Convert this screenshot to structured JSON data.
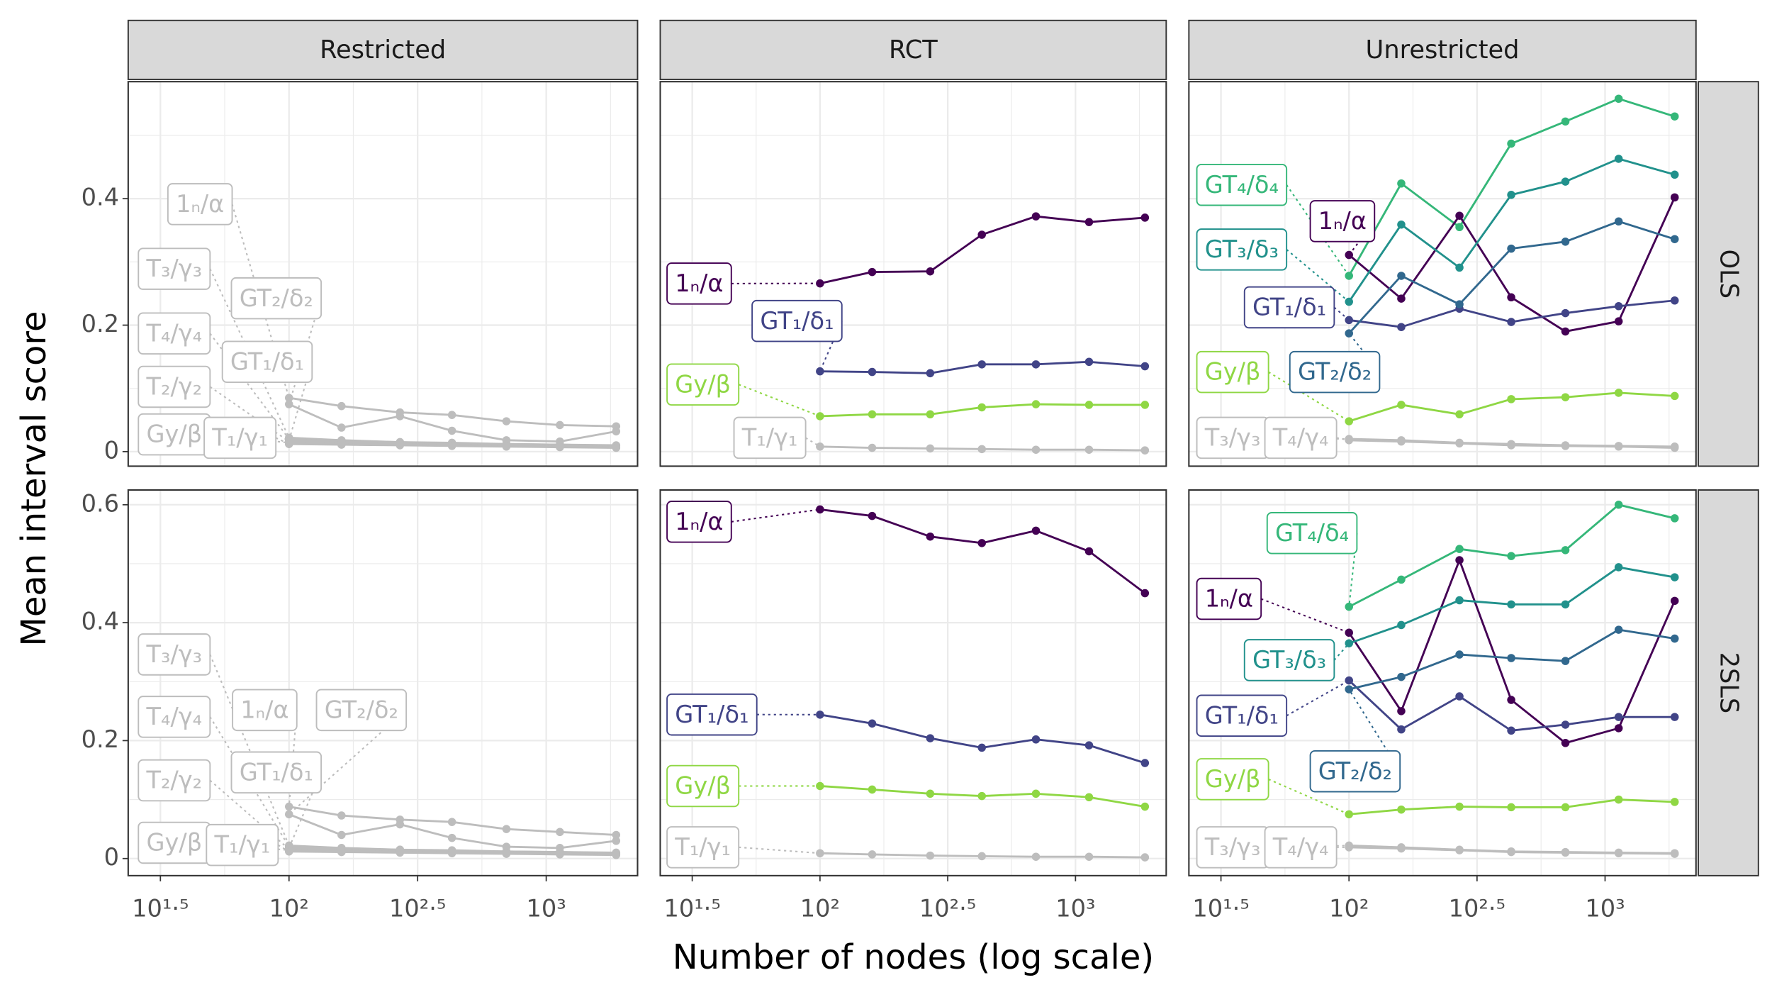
{
  "facets": {
    "columns": [
      "Restricted",
      "RCT",
      "Unrestricted"
    ],
    "rows": [
      "OLS",
      "2SLS"
    ]
  },
  "x_label": "Number of nodes (log scale)",
  "y_label": "Mean interval score",
  "chart_data": [
    {
      "type": "line",
      "xlog": true,
      "grid": true,
      "x": [
        100,
        160,
        270,
        430,
        700,
        1130,
        1870
      ],
      "ylim": [
        -0.023,
        0.585
      ],
      "yticks": [
        0,
        0.2,
        0.4
      ],
      "series": [
        {
          "name": "1ₙ/α",
          "color": "#bdbdbd",
          "values": [
            0.085,
            0.072,
            0.062,
            0.058,
            0.048,
            0.042,
            0.04
          ]
        },
        {
          "name": "T₃/γ₃",
          "color": "#bdbdbd",
          "values": [
            0.022,
            0.018,
            0.015,
            0.014,
            0.012,
            0.011,
            0.01
          ]
        },
        {
          "name": "GT₂/δ₂",
          "color": "#bdbdbd",
          "values": [
            0.075,
            0.038,
            0.056,
            0.033,
            0.018,
            0.016,
            0.032
          ]
        },
        {
          "name": "T₄/γ₄",
          "color": "#bdbdbd",
          "values": [
            0.02,
            0.016,
            0.014,
            0.013,
            0.011,
            0.01,
            0.009
          ]
        },
        {
          "name": "GT₁/δ₁",
          "color": "#bdbdbd",
          "values": [
            0.018,
            0.017,
            0.015,
            0.013,
            0.012,
            0.011,
            0.009
          ]
        },
        {
          "name": "T₂/γ₂",
          "color": "#bdbdbd",
          "values": [
            0.016,
            0.014,
            0.012,
            0.011,
            0.009,
            0.008,
            0.007
          ]
        },
        {
          "name": "Gy/β",
          "color": "#bdbdbd",
          "values": [
            0.014,
            0.013,
            0.011,
            0.01,
            0.009,
            0.008,
            0.007
          ]
        },
        {
          "name": "T₁/γ₁",
          "color": "#bdbdbd",
          "values": [
            0.012,
            0.011,
            0.01,
            0.009,
            0.008,
            0.007,
            0.006
          ]
        }
      ]
    },
    {
      "type": "line",
      "xlog": true,
      "grid": true,
      "x": [
        100,
        160,
        270,
        430,
        700,
        1130,
        1870
      ],
      "series": [
        {
          "name": "1ₙ/α",
          "color": "#440154",
          "values": [
            0.266,
            0.284,
            0.285,
            0.343,
            0.372,
            0.363,
            0.37
          ]
        },
        {
          "name": "GT₁/δ₁",
          "color": "#414487",
          "values": [
            0.127,
            0.126,
            0.124,
            0.138,
            0.138,
            0.142,
            0.135
          ]
        },
        {
          "name": "Gy/β",
          "color": "#8fd744",
          "values": [
            0.056,
            0.059,
            0.059,
            0.07,
            0.075,
            0.074,
            0.074
          ]
        },
        {
          "name": "T₁/γ₁",
          "color": "#bdbdbd",
          "values": [
            0.008,
            0.006,
            0.005,
            0.004,
            0.003,
            0.003,
            0.002
          ]
        }
      ]
    },
    {
      "type": "line",
      "xlog": true,
      "grid": true,
      "x": [
        100,
        160,
        270,
        430,
        700,
        1130,
        1870
      ],
      "series": [
        {
          "name": "GT₄/δ₄",
          "color": "#35b779",
          "values": [
            0.278,
            0.424,
            0.355,
            0.487,
            0.522,
            0.558,
            0.53
          ]
        },
        {
          "name": "1ₙ/α",
          "color": "#440154",
          "values": [
            0.311,
            0.242,
            0.373,
            0.244,
            0.19,
            0.206,
            0.402
          ]
        },
        {
          "name": "GT₃/δ₃",
          "color": "#21918c",
          "values": [
            0.237,
            0.359,
            0.291,
            0.406,
            0.427,
            0.463,
            0.438
          ]
        },
        {
          "name": "GT₁/δ₁",
          "color": "#414487",
          "values": [
            0.208,
            0.197,
            0.226,
            0.205,
            0.219,
            0.23,
            0.239
          ]
        },
        {
          "name": "Gy/β",
          "color": "#8fd744",
          "values": [
            0.048,
            0.074,
            0.059,
            0.083,
            0.086,
            0.093,
            0.088
          ]
        },
        {
          "name": "GT₂/δ₂",
          "color": "#31688e",
          "values": [
            0.187,
            0.278,
            0.233,
            0.321,
            0.332,
            0.364,
            0.336
          ]
        },
        {
          "name": "T₃/γ₃",
          "color": "#bdbdbd",
          "values": [
            0.02,
            0.018,
            0.014,
            0.012,
            0.01,
            0.009,
            0.008
          ]
        },
        {
          "name": "T₄/γ₄",
          "color": "#bdbdbd",
          "values": [
            0.018,
            0.016,
            0.013,
            0.01,
            0.009,
            0.008,
            0.006
          ]
        }
      ]
    },
    {
      "type": "line",
      "xlog": true,
      "grid": true,
      "x": [
        100,
        160,
        270,
        430,
        700,
        1130,
        1870
      ],
      "xlim": [
        23.7,
        2265
      ],
      "xticks": [
        {
          "value": 31.62,
          "label": "10¹·⁵"
        },
        {
          "value": 100,
          "label": "10²"
        },
        {
          "value": 316.2,
          "label": "10²·⁵"
        },
        {
          "value": 1000,
          "label": "10³"
        }
      ],
      "ylim": [
        -0.029,
        0.625
      ],
      "yticks": [
        0,
        0.2,
        0.4,
        0.6
      ],
      "series": [
        {
          "name": "T₃/γ₃",
          "color": "#bdbdbd",
          "values": [
            0.022,
            0.018,
            0.015,
            0.014,
            0.012,
            0.011,
            0.01
          ]
        },
        {
          "name": "T₄/γ₄",
          "color": "#bdbdbd",
          "values": [
            0.02,
            0.016,
            0.014,
            0.013,
            0.011,
            0.01,
            0.009
          ]
        },
        {
          "name": "1ₙ/α",
          "color": "#bdbdbd",
          "values": [
            0.088,
            0.073,
            0.066,
            0.062,
            0.05,
            0.045,
            0.04
          ]
        },
        {
          "name": "GT₂/δ₂",
          "color": "#bdbdbd",
          "values": [
            0.075,
            0.04,
            0.058,
            0.035,
            0.02,
            0.018,
            0.03
          ]
        },
        {
          "name": "T₂/γ₂",
          "color": "#bdbdbd",
          "values": [
            0.016,
            0.014,
            0.012,
            0.011,
            0.009,
            0.008,
            0.007
          ]
        },
        {
          "name": "GT₁/δ₁",
          "color": "#bdbdbd",
          "values": [
            0.018,
            0.017,
            0.015,
            0.013,
            0.012,
            0.011,
            0.009
          ]
        },
        {
          "name": "Gy/β",
          "color": "#bdbdbd",
          "values": [
            0.014,
            0.013,
            0.011,
            0.01,
            0.009,
            0.008,
            0.007
          ]
        },
        {
          "name": "T₁/γ₁",
          "color": "#bdbdbd",
          "values": [
            0.012,
            0.011,
            0.01,
            0.009,
            0.008,
            0.007,
            0.006
          ]
        }
      ]
    },
    {
      "type": "line",
      "xlog": true,
      "grid": true,
      "x": [
        100,
        160,
        270,
        430,
        700,
        1130,
        1870
      ],
      "xlim": [
        23.7,
        2265
      ],
      "xticks": [
        {
          "value": 31.62,
          "label": "10¹·⁵"
        },
        {
          "value": 100,
          "label": "10²"
        },
        {
          "value": 316.2,
          "label": "10²·⁵"
        },
        {
          "value": 1000,
          "label": "10³"
        }
      ],
      "series": [
        {
          "name": "1ₙ/α",
          "color": "#440154",
          "values": [
            0.592,
            0.581,
            0.546,
            0.535,
            0.556,
            0.521,
            0.45
          ]
        },
        {
          "name": "GT₁/δ₁",
          "color": "#414487",
          "values": [
            0.244,
            0.229,
            0.204,
            0.188,
            0.202,
            0.192,
            0.162
          ]
        },
        {
          "name": "Gy/β",
          "color": "#8fd744",
          "values": [
            0.123,
            0.117,
            0.11,
            0.106,
            0.11,
            0.104,
            0.088
          ]
        },
        {
          "name": "T₁/γ₁",
          "color": "#bdbdbd",
          "values": [
            0.009,
            0.007,
            0.005,
            0.004,
            0.003,
            0.003,
            0.002
          ]
        }
      ]
    },
    {
      "type": "line",
      "xlog": true,
      "grid": true,
      "x": [
        100,
        160,
        270,
        430,
        700,
        1130,
        1870
      ],
      "xlim": [
        23.7,
        2265
      ],
      "xticks": [
        {
          "value": 31.62,
          "label": "10¹·⁵"
        },
        {
          "value": 100,
          "label": "10²"
        },
        {
          "value": 316.2,
          "label": "10²·⁵"
        },
        {
          "value": 1000,
          "label": "10³"
        }
      ],
      "series": [
        {
          "name": "GT₄/δ₄",
          "color": "#35b779",
          "values": [
            0.427,
            0.473,
            0.525,
            0.513,
            0.523,
            0.6,
            0.577
          ]
        },
        {
          "name": "1ₙ/α",
          "color": "#440154",
          "values": [
            0.383,
            0.25,
            0.506,
            0.269,
            0.196,
            0.221,
            0.437
          ]
        },
        {
          "name": "GT₃/δ₃",
          "color": "#21918c",
          "values": [
            0.365,
            0.396,
            0.438,
            0.431,
            0.431,
            0.494,
            0.477
          ]
        },
        {
          "name": "GT₁/δ₁",
          "color": "#414487",
          "values": [
            0.302,
            0.219,
            0.275,
            0.217,
            0.227,
            0.24,
            0.24
          ]
        },
        {
          "name": "Gy/β",
          "color": "#8fd744",
          "values": [
            0.075,
            0.083,
            0.088,
            0.087,
            0.087,
            0.1,
            0.096
          ]
        },
        {
          "name": "GT₂/δ₂",
          "color": "#31688e",
          "values": [
            0.287,
            0.308,
            0.346,
            0.34,
            0.335,
            0.388,
            0.373
          ]
        },
        {
          "name": "T₃/γ₃",
          "color": "#bdbdbd",
          "values": [
            0.022,
            0.019,
            0.015,
            0.012,
            0.011,
            0.01,
            0.009
          ]
        },
        {
          "name": "T₄/γ₄",
          "color": "#bdbdbd",
          "values": [
            0.019,
            0.017,
            0.014,
            0.011,
            0.01,
            0.009,
            0.008
          ]
        }
      ]
    }
  ]
}
